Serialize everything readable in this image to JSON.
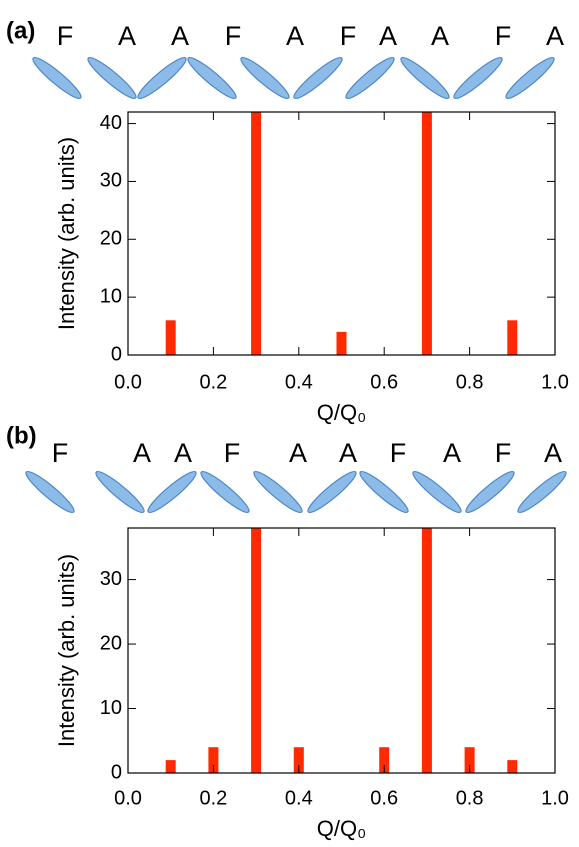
{
  "chart_data": [
    {
      "type": "bar",
      "panel_label": "(a)",
      "sequence": [
        "F",
        "A",
        "A",
        "F",
        "A",
        "F",
        "A",
        "A",
        "F",
        "A"
      ],
      "x_label": "Q/Q₀",
      "y_label": "Intensity (arb. units)",
      "x": [
        0.1,
        0.3,
        0.5,
        0.7,
        0.9
      ],
      "values": [
        6,
        42,
        4,
        42,
        6
      ],
      "color": "#ff2a00",
      "xlim": [
        0,
        1
      ],
      "xticks": [
        {
          "value": 0,
          "label": "0.0"
        },
        0.2,
        0.4,
        0.6,
        0.8,
        {
          "value": 1,
          "label": "1.0"
        }
      ],
      "ylim": [
        0,
        42
      ],
      "yticks": [
        0,
        10,
        20,
        30,
        40
      ]
    },
    {
      "type": "bar",
      "panel_label": "(b)",
      "sequence": [
        "F",
        "A",
        "A",
        "F",
        "A",
        "A",
        "F",
        "A",
        "F",
        "A"
      ],
      "x_label": "Q/Q₀",
      "y_label": "Intensity (arb. units)",
      "x": [
        0.1,
        0.2,
        0.3,
        0.4,
        0.6,
        0.7,
        0.8,
        0.9
      ],
      "values": [
        2,
        4,
        38,
        4,
        4,
        38,
        4,
        2
      ],
      "color": "#ff2a00",
      "xlim": [
        0,
        1
      ],
      "xticks": [
        {
          "value": 0,
          "label": "0.0"
        },
        0.2,
        0.4,
        0.6,
        0.8,
        {
          "value": 1,
          "label": "1.0"
        }
      ],
      "ylim": [
        0,
        38
      ],
      "yticks": [
        0,
        10,
        20,
        30
      ]
    }
  ]
}
